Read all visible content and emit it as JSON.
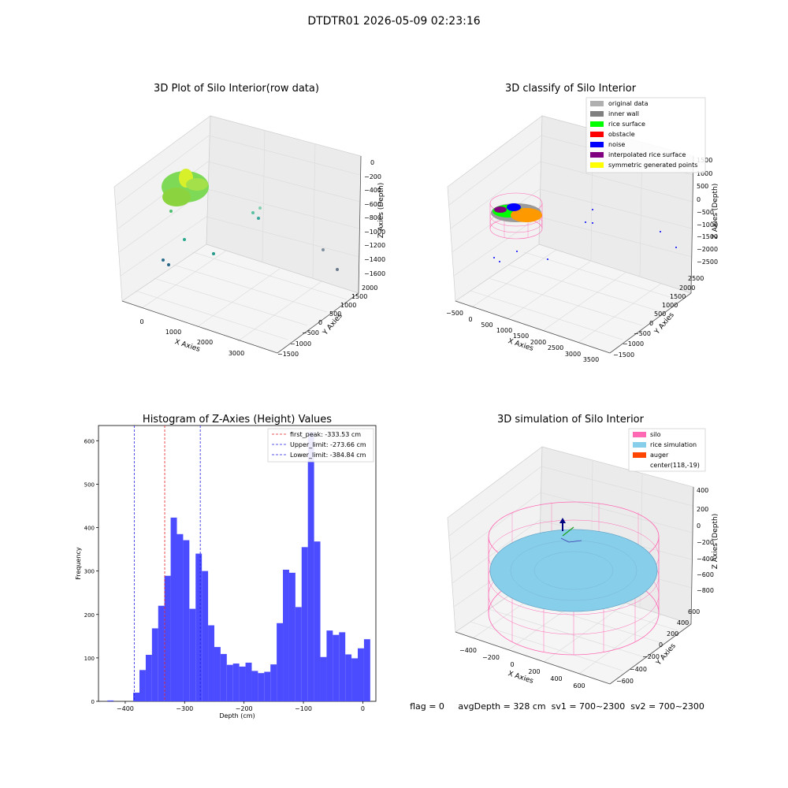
{
  "suptitle": "DTDTR01 2026-05-09 02:23:16",
  "colors": {
    "hist_bar": "#4b4bff",
    "first_peak": "#e62020",
    "limits": "#2020e6",
    "silo": "#ff69b4",
    "rice": "#87ceeb",
    "auger": "#ff4500",
    "inner_wall": "#808080",
    "rice_surface": "#00ff00",
    "obstacle": "#ff0000",
    "noise": "#0000ff",
    "interp": "#800080",
    "symmetric": "#ffff00",
    "original": "#b0b0b0"
  },
  "panel_raw": {
    "title": "3D Plot of Silo Interior(row data)",
    "xlabel": "X Axies",
    "ylabel": "Y Axies",
    "zlabel": "Z Axies (Depth)",
    "xticks": [
      "0",
      "1000",
      "2000",
      "3000"
    ],
    "yticks": [
      "2000",
      "1500",
      "1000",
      "500",
      "0",
      "−500",
      "−1000",
      "−1500"
    ],
    "zticks": [
      "0",
      "−200",
      "−400",
      "−600",
      "−800",
      "−1000",
      "−1200",
      "−1400",
      "−1600"
    ]
  },
  "panel_classify": {
    "title": "3D classify of Silo Interior",
    "xlabel": "X Axies",
    "ylabel": "Y Axies",
    "zlabel": "Z Axies (Depth)",
    "xticks": [
      "−500",
      "0",
      "500",
      "1000",
      "1500",
      "2000",
      "2500",
      "3000",
      "3500"
    ],
    "yticks": [
      "2500",
      "2000",
      "1500",
      "1000",
      "500",
      "0",
      "−500",
      "−1000",
      "−1500"
    ],
    "zticks": [
      "1500",
      "1000",
      "500",
      "0",
      "−500",
      "−1000",
      "−1500",
      "−2000",
      "−2500"
    ],
    "legend": [
      "original data",
      "inner wall",
      "rice surface",
      "obstacle",
      "noise",
      "interpolated rice surface",
      "symmetric generated points"
    ]
  },
  "panel_sim": {
    "title": "3D simulation of Silo Interior",
    "xlabel": "X Axies",
    "ylabel": "Y Axies",
    "zlabel": "Z Axies (Depth)",
    "xticks": [
      "−400",
      "−200",
      "0",
      "200",
      "400",
      "600"
    ],
    "yticks": [
      "600",
      "400",
      "200",
      "0",
      "−200",
      "−400",
      "−600"
    ],
    "zticks": [
      "400",
      "200",
      "0",
      "−200",
      "−400",
      "−600",
      "−800"
    ],
    "legend": [
      "silo",
      "rice simulation",
      "auger",
      "center(118,-19)"
    ]
  },
  "status_line": "flag = 0     avgDepth = 328 cm  sv1 = 700~2300  sv2 = 700~2300",
  "chart_data": {
    "type": "bar",
    "title": "Histogram of Z-Axies (Height) Values",
    "xlabel": "Depth (cm)",
    "ylabel": "Frequency",
    "xlim": [
      -445,
      22
    ],
    "ylim": [
      0,
      635
    ],
    "xticks": [
      -400,
      -300,
      -200,
      -100,
      0
    ],
    "yticks": [
      0,
      100,
      200,
      300,
      400,
      500,
      600
    ],
    "bin_width": 10.5,
    "bins": [
      {
        "start": -430.0,
        "count": 2
      },
      {
        "start": -386.5,
        "count": 20
      },
      {
        "start": -376.0,
        "count": 72
      },
      {
        "start": -365.5,
        "count": 107
      },
      {
        "start": -355.0,
        "count": 168
      },
      {
        "start": -344.5,
        "count": 220
      },
      {
        "start": -334.0,
        "count": 289
      },
      {
        "start": -323.5,
        "count": 423
      },
      {
        "start": -313.0,
        "count": 385
      },
      {
        "start": -302.5,
        "count": 371
      },
      {
        "start": -292.0,
        "count": 213
      },
      {
        "start": -281.5,
        "count": 340
      },
      {
        "start": -271.0,
        "count": 300
      },
      {
        "start": -260.5,
        "count": 175
      },
      {
        "start": -250.0,
        "count": 125
      },
      {
        "start": -239.5,
        "count": 109
      },
      {
        "start": -229.0,
        "count": 84
      },
      {
        "start": -218.5,
        "count": 87
      },
      {
        "start": -208.0,
        "count": 80
      },
      {
        "start": -197.5,
        "count": 89
      },
      {
        "start": -187.0,
        "count": 70
      },
      {
        "start": -176.5,
        "count": 65
      },
      {
        "start": -166.0,
        "count": 68
      },
      {
        "start": -155.5,
        "count": 85
      },
      {
        "start": -145.0,
        "count": 180
      },
      {
        "start": -134.5,
        "count": 303
      },
      {
        "start": -124.0,
        "count": 296
      },
      {
        "start": -113.5,
        "count": 217
      },
      {
        "start": -103.0,
        "count": 355
      },
      {
        "start": -92.5,
        "count": 620
      },
      {
        "start": -82.0,
        "count": 368
      },
      {
        "start": -71.5,
        "count": 102
      },
      {
        "start": -61.0,
        "count": 163
      },
      {
        "start": -50.5,
        "count": 153
      },
      {
        "start": -40.0,
        "count": 159
      },
      {
        "start": -29.5,
        "count": 108
      },
      {
        "start": -19.0,
        "count": 99
      },
      {
        "start": -8.5,
        "count": 122
      },
      {
        "start": 2.0,
        "count": 143
      }
    ],
    "lines": [
      {
        "label": "first_peak: -333.53 cm",
        "x": -333.53,
        "color": "#e62020"
      },
      {
        "label": "Upper_limit: -273.66 cm",
        "x": -273.66,
        "color": "#2020e6"
      },
      {
        "label": "Lower_limit: -384.84 cm",
        "x": -384.84,
        "color": "#2020e6"
      }
    ],
    "legend_position": "top-right",
    "grid": false
  }
}
